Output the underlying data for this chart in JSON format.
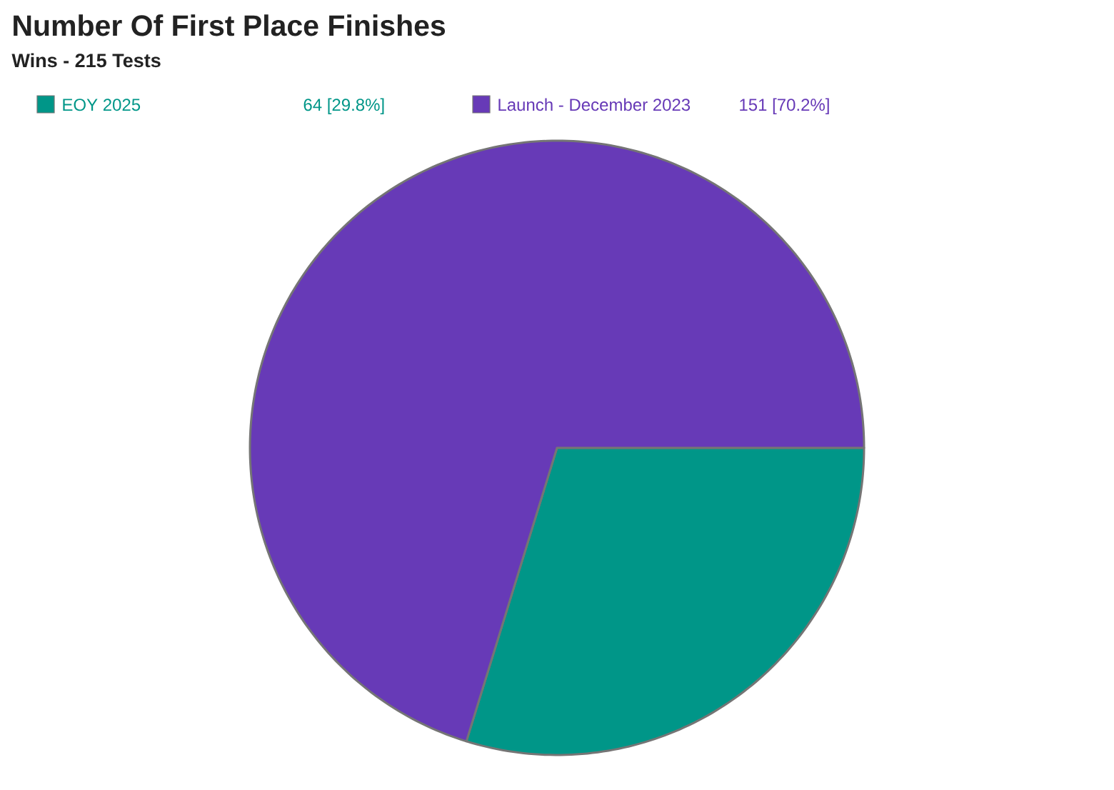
{
  "chart_data": {
    "type": "pie",
    "title": "Number Of First Place Finishes",
    "subtitle": "Wins - 215 Tests",
    "categories": [
      "EOY 2025",
      "Launch - December 2023"
    ],
    "values": [
      64,
      151
    ],
    "colors": [
      "#009688",
      "#673ab7"
    ],
    "value_labels": [
      "64 [29.8%]",
      "151 [70.2%]"
    ],
    "legend": "top"
  }
}
